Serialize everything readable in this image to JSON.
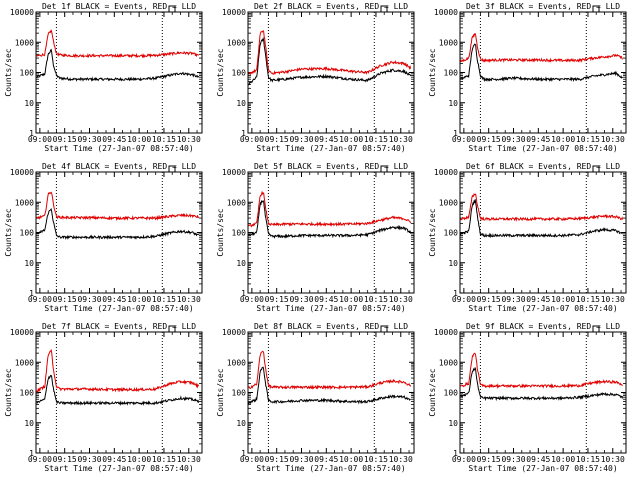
{
  "figure": {
    "common": {
      "type": "line",
      "xlabel": "Start Time (27-Jan-07 08:57:40)",
      "ylabel": "Counts/sec",
      "x_tick_labels": [
        "09:00",
        "09:15",
        "09:30",
        "09:45",
        "10:00",
        "10:15",
        "10:30"
      ],
      "y_tick_labels": [
        "1",
        "10",
        "100",
        "1000",
        "10000"
      ],
      "y_scale": "log",
      "ylim": [
        1,
        10000
      ],
      "xlim": [
        "08:57:40",
        "10:38:00"
      ],
      "dotted_vertical_lines_at": [
        "09:10",
        "10:14"
      ],
      "colors": {
        "events": "#000000",
        "lld": "#e00000"
      }
    }
  },
  "chart_data": [
    {
      "type": "line",
      "title": "Det 1f BLACK = Events, RED = LLD",
      "x": [
        "08:58",
        "09:03",
        "09:05",
        "09:07",
        "09:08",
        "09:10",
        "09:12",
        "09:20",
        "09:30",
        "09:45",
        "10:00",
        "10:10",
        "10:18",
        "10:25",
        "10:32",
        "10:36"
      ],
      "series": [
        {
          "name": "Events",
          "values": [
            70,
            90,
            400,
            550,
            200,
            80,
            65,
            60,
            60,
            60,
            60,
            65,
            80,
            95,
            85,
            70
          ]
        },
        {
          "name": "LLD",
          "values": [
            350,
            400,
            1800,
            2500,
            1200,
            430,
            380,
            360,
            360,
            360,
            360,
            370,
            410,
            450,
            430,
            360
          ]
        }
      ]
    },
    {
      "type": "line",
      "title": "Det 2f BLACK = Events, RED = LLD",
      "x": [
        "08:58",
        "09:03",
        "09:05",
        "09:07",
        "09:08",
        "09:10",
        "09:12",
        "09:20",
        "09:30",
        "09:45",
        "10:00",
        "10:10",
        "10:18",
        "10:25",
        "10:32",
        "10:36"
      ],
      "series": [
        {
          "name": "Events",
          "values": [
            40,
            70,
            900,
            1300,
            500,
            70,
            55,
            60,
            70,
            75,
            60,
            55,
            95,
            120,
            110,
            75
          ]
        },
        {
          "name": "LLD",
          "values": [
            90,
            120,
            1900,
            2500,
            1000,
            120,
            95,
            105,
            130,
            135,
            110,
            100,
            170,
            220,
            200,
            140
          ]
        }
      ]
    },
    {
      "type": "line",
      "title": "Det 3f BLACK = Events, RED = LLD",
      "x": [
        "08:58",
        "09:03",
        "09:05",
        "09:07",
        "09:08",
        "09:10",
        "09:12",
        "09:20",
        "09:30",
        "09:45",
        "10:00",
        "10:10",
        "10:18",
        "10:25",
        "10:32",
        "10:36"
      ],
      "series": [
        {
          "name": "Events",
          "values": [
            60,
            80,
            600,
            900,
            300,
            80,
            60,
            60,
            65,
            60,
            60,
            60,
            75,
            85,
            95,
            65
          ]
        },
        {
          "name": "LLD",
          "values": [
            230,
            300,
            1400,
            2000,
            800,
            280,
            250,
            260,
            260,
            260,
            250,
            255,
            300,
            330,
            370,
            300
          ]
        }
      ]
    },
    {
      "type": "line",
      "title": "Det 4f BLACK = Events, RED = LLD",
      "x": [
        "08:58",
        "09:03",
        "09:05",
        "09:07",
        "09:08",
        "09:10",
        "09:12",
        "09:20",
        "09:30",
        "09:45",
        "10:00",
        "10:10",
        "10:18",
        "10:25",
        "10:32",
        "10:36"
      ],
      "series": [
        {
          "name": "Events",
          "values": [
            90,
            120,
            450,
            600,
            250,
            80,
            70,
            70,
            70,
            70,
            70,
            75,
            95,
            110,
            100,
            80
          ]
        },
        {
          "name": "LLD",
          "values": [
            300,
            350,
            1800,
            2300,
            1000,
            330,
            320,
            310,
            310,
            300,
            300,
            300,
            340,
            370,
            360,
            320
          ]
        }
      ]
    },
    {
      "type": "line",
      "title": "Det 5f BLACK = Events, RED = LLD",
      "x": [
        "08:58",
        "09:03",
        "09:05",
        "09:07",
        "09:08",
        "09:10",
        "09:12",
        "09:20",
        "09:30",
        "09:45",
        "10:00",
        "10:10",
        "10:18",
        "10:25",
        "10:32",
        "10:36"
      ],
      "series": [
        {
          "name": "Events",
          "values": [
            80,
            100,
            900,
            1200,
            400,
            90,
            75,
            75,
            80,
            80,
            80,
            85,
            120,
            150,
            140,
            100
          ]
        },
        {
          "name": "LLD",
          "values": [
            160,
            200,
            1700,
            2200,
            800,
            200,
            180,
            190,
            190,
            190,
            190,
            200,
            260,
            310,
            290,
            220
          ]
        }
      ]
    },
    {
      "type": "line",
      "title": "Det 6f BLACK = Events, RED = LLD",
      "x": [
        "08:58",
        "09:03",
        "09:05",
        "09:07",
        "09:08",
        "09:10",
        "09:12",
        "09:20",
        "09:30",
        "09:45",
        "10:00",
        "10:10",
        "10:18",
        "10:25",
        "10:32",
        "10:36"
      ],
      "series": [
        {
          "name": "Events",
          "values": [
            90,
            110,
            800,
            1200,
            400,
            90,
            80,
            80,
            80,
            80,
            80,
            85,
            110,
            125,
            115,
            90
          ]
        },
        {
          "name": "LLD",
          "values": [
            280,
            320,
            1500,
            2000,
            900,
            300,
            280,
            280,
            280,
            280,
            280,
            290,
            320,
            350,
            330,
            280
          ]
        }
      ]
    },
    {
      "type": "line",
      "title": "Det 7f BLACK = Events, RED = LLD",
      "x": [
        "08:58",
        "09:03",
        "09:05",
        "09:07",
        "09:08",
        "09:10",
        "09:12",
        "09:20",
        "09:30",
        "09:45",
        "10:00",
        "10:10",
        "10:18",
        "10:25",
        "10:32",
        "10:36"
      ],
      "series": [
        {
          "name": "Events",
          "values": [
            45,
            60,
            300,
            380,
            150,
            50,
            45,
            45,
            45,
            45,
            45,
            45,
            55,
            65,
            60,
            50
          ]
        },
        {
          "name": "LLD",
          "values": [
            110,
            160,
            1800,
            2400,
            700,
            160,
            130,
            130,
            130,
            125,
            125,
            130,
            190,
            230,
            210,
            160
          ]
        }
      ]
    },
    {
      "type": "line",
      "title": "Det 8f BLACK = Events, RED = LLD",
      "x": [
        "08:58",
        "09:03",
        "09:05",
        "09:07",
        "09:08",
        "09:10",
        "09:12",
        "09:20",
        "09:30",
        "09:45",
        "10:00",
        "10:10",
        "10:18",
        "10:25",
        "10:32",
        "10:36"
      ],
      "series": [
        {
          "name": "Events",
          "values": [
            45,
            60,
            500,
            700,
            250,
            55,
            50,
            50,
            55,
            55,
            50,
            50,
            65,
            75,
            70,
            55
          ]
        },
        {
          "name": "LLD",
          "values": [
            140,
            190,
            1800,
            2400,
            800,
            170,
            150,
            150,
            150,
            150,
            150,
            155,
            210,
            240,
            220,
            170
          ]
        }
      ]
    },
    {
      "type": "line",
      "title": "Det 9f BLACK = Events, RED = LLD",
      "x": [
        "08:58",
        "09:03",
        "09:05",
        "09:07",
        "09:08",
        "09:10",
        "09:12",
        "09:20",
        "09:30",
        "09:45",
        "10:00",
        "10:10",
        "10:18",
        "10:25",
        "10:32",
        "10:36"
      ],
      "series": [
        {
          "name": "Events",
          "values": [
            75,
            95,
            500,
            650,
            220,
            70,
            65,
            65,
            65,
            65,
            65,
            70,
            80,
            90,
            85,
            70
          ]
        },
        {
          "name": "LLD",
          "values": [
            160,
            200,
            1500,
            2100,
            700,
            180,
            165,
            165,
            165,
            165,
            165,
            170,
            210,
            230,
            220,
            180
          ]
        }
      ]
    }
  ]
}
